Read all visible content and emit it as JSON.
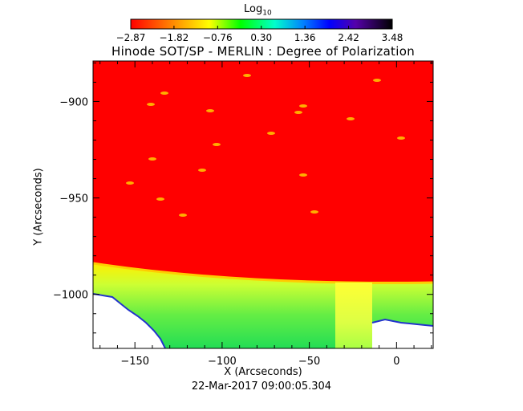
{
  "chart_data": {
    "type": "heatmap",
    "title": "Hinode SOT/SP - MERLIN : Degree of Polarization",
    "xlabel": "X (Arcseconds)",
    "ylabel": "Y (Arcseconds)",
    "xlim": [
      -174,
      21
    ],
    "ylim": [
      -1028,
      -879
    ],
    "x_ticks": [
      -150,
      -100,
      -50,
      0
    ],
    "x_tick_labels": [
      "−150",
      "−100",
      "−50",
      "0"
    ],
    "y_ticks": [
      -900,
      -950,
      -1000
    ],
    "y_tick_labels": [
      "−900",
      "−950",
      "−1000"
    ],
    "colorbar": {
      "label_main": "Log",
      "label_sub": "10",
      "range": [
        -2.87,
        3.48
      ],
      "tick_values": [
        -2.87,
        -1.82,
        -0.76,
        0.3,
        1.36,
        2.42,
        3.48
      ],
      "tick_labels": [
        "−2.87",
        "−1.82",
        "−0.76",
        "0.30",
        "1.36",
        "2.42",
        "3.48"
      ],
      "colors": [
        "#ff0000",
        "#ffff00",
        "#00ff00",
        "#00ffff",
        "#0000ff",
        "#6000a0",
        "#000000"
      ]
    },
    "limb_y": [
      -978,
      -990
    ],
    "footer": "22-Mar-2017 09:00:05.304",
    "grid": false
  }
}
